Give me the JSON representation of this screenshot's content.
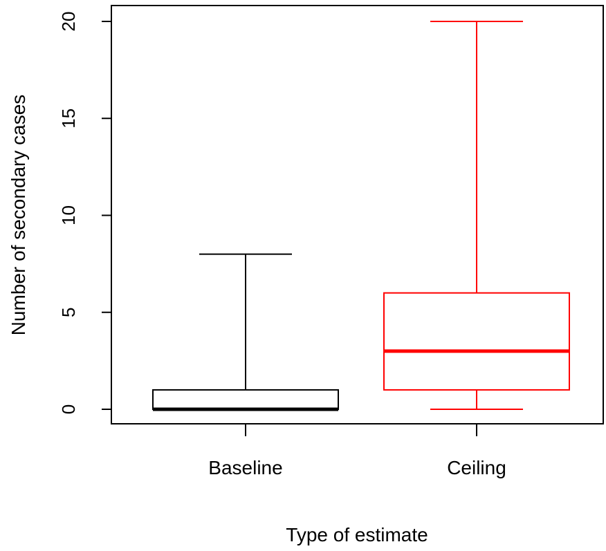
{
  "chart_data": {
    "type": "box",
    "xlabel": "Type of estimate",
    "ylabel": "Number of secondary cases",
    "ylim": [
      -1,
      21
    ],
    "yticks": [
      0,
      5,
      10,
      15,
      20
    ],
    "grid": false,
    "categories": [
      "Baseline",
      "Ceiling"
    ],
    "boxes": [
      {
        "category": "Baseline",
        "color": "#000000",
        "min": 0,
        "q1": 0,
        "median": 0,
        "q3": 1,
        "max": 8
      },
      {
        "category": "Ceiling",
        "color": "#ff0000",
        "min": 0,
        "q1": 1,
        "median": 3,
        "q3": 6,
        "max": 20
      }
    ]
  }
}
